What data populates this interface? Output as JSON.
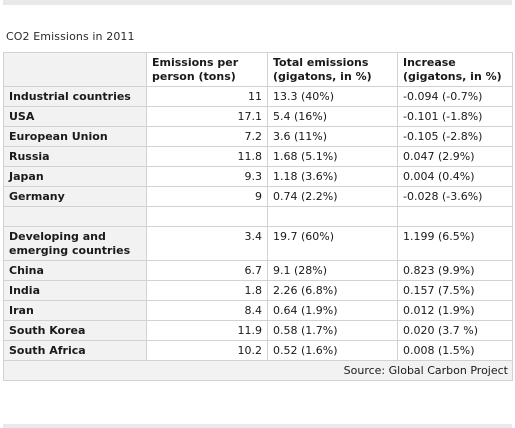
{
  "title": "CO2 Emissions in 2011",
  "headers": [
    "",
    "Emissions per person (tons)",
    "Total emissions (gigatons, in %)",
    "Increase (gigatons, in %)"
  ],
  "rows": [
    {
      "country": "Industrial countries",
      "per_person": "11",
      "total": "13.3 (40%)",
      "increase": "-0.094 (-0.7%)"
    },
    {
      "country": "USA",
      "per_person": "17.1",
      "total": "5.4 (16%)",
      "increase": "-0.101 (-1.8%)"
    },
    {
      "country": "European Union",
      "per_person": "7.2",
      "total": "3.6 (11%)",
      "increase": "-0.105 (-2.8%)"
    },
    {
      "country": "Russia",
      "per_person": "11.8",
      "total": "1.68 (5.1%)",
      "increase": "0.047 (2.9%)"
    },
    {
      "country": "Japan",
      "per_person": "9.3",
      "total": "1.18 (3.6%)",
      "increase": "0.004 (0.4%)"
    },
    {
      "country": "Germany",
      "per_person": "9",
      "total": "0.74 (2.2%)",
      "increase": "-0.028 (-3.6%)"
    },
    {
      "country": "Developing and emerging countries",
      "per_person": "3.4",
      "total": "19.7 (60%)",
      "increase": "1.199 (6.5%)"
    },
    {
      "country": "China",
      "per_person": "6.7",
      "total": "9.1 (28%)",
      "increase": "0.823 (9.9%)"
    },
    {
      "country": "India",
      "per_person": "1.8",
      "total": "2.26 (6.8%)",
      "increase": "0.157 (7.5%)"
    },
    {
      "country": "Iran",
      "per_person": "8.4",
      "total": "0.64 (1.9%)",
      "increase": "0.012 (1.9%)"
    },
    {
      "country": "South Korea",
      "per_person": "11.9",
      "total": "0.58 (1.7%)",
      "increase": "0.020 (3.7 %)"
    },
    {
      "country": "South Africa",
      "per_person": "10.2",
      "total": "0.52 (1.6%)",
      "increase": "0.008 (1.5%)"
    }
  ],
  "source": "Source: Global Carbon Project"
}
